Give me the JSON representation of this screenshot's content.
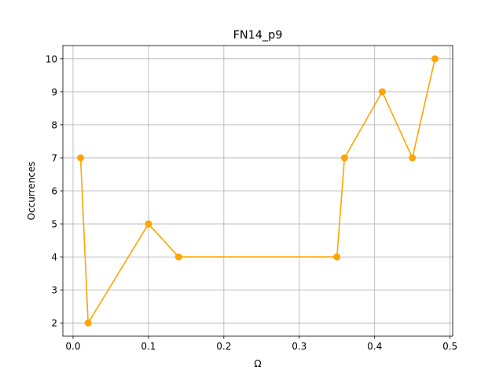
{
  "chart_data": {
    "type": "line",
    "title": "FN14_p9",
    "xlabel": "Ω",
    "ylabel": "Occurrences",
    "xlim": [
      -0.0135,
      0.5035
    ],
    "ylim": [
      1.6,
      10.4
    ],
    "xticks": [
      0.0,
      0.1,
      0.2,
      0.3,
      0.4,
      0.5
    ],
    "xtick_labels": [
      "0.0",
      "0.1",
      "0.2",
      "0.3",
      "0.4",
      "0.5"
    ],
    "yticks": [
      2,
      3,
      4,
      5,
      6,
      7,
      8,
      9,
      10
    ],
    "ytick_labels": [
      "2",
      "3",
      "4",
      "5",
      "6",
      "7",
      "8",
      "9",
      "10"
    ],
    "grid": true,
    "series": [
      {
        "color": "#ffa500",
        "marker": "circle",
        "x": [
          0.01,
          0.02,
          0.1,
          0.14,
          0.35,
          0.36,
          0.41,
          0.45,
          0.48
        ],
        "y": [
          7,
          2,
          5,
          4,
          4,
          7,
          9,
          7,
          10
        ]
      }
    ]
  }
}
